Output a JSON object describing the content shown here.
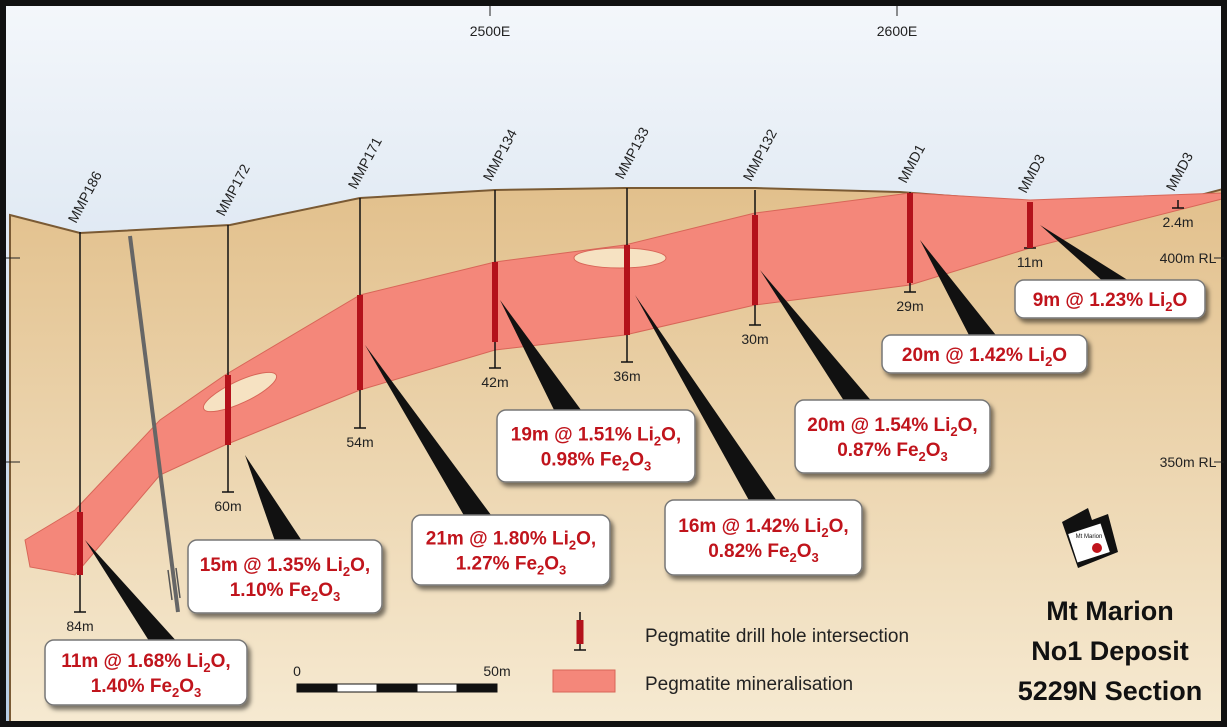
{
  "axis": {
    "eastings": [
      "2500E",
      "2600E"
    ],
    "levels": [
      "400m RL",
      "350m RL"
    ]
  },
  "holes": [
    {
      "name": "MMP186",
      "depth": "84m"
    },
    {
      "name": "MMP172",
      "depth": "60m"
    },
    {
      "name": "MMP171",
      "depth": "54m"
    },
    {
      "name": "MMP134",
      "depth": "42m"
    },
    {
      "name": "MMP133",
      "depth": "36m"
    },
    {
      "name": "MMP132",
      "depth": "30m"
    },
    {
      "name": "MMD1",
      "depth": "29m"
    },
    {
      "name": "MMD3",
      "depth": "11m"
    },
    {
      "name": "MMD3",
      "depth": "2.4m"
    }
  ],
  "intercepts": [
    {
      "lines": [
        [
          "11m @ 1.68% Li",
          "2",
          "O,"
        ],
        [
          "1.40% Fe",
          "2",
          "O",
          "3"
        ]
      ]
    },
    {
      "lines": [
        [
          "15m @ 1.35% Li",
          "2",
          "O,"
        ],
        [
          "1.10% Fe",
          "2",
          "O",
          "3"
        ]
      ]
    },
    {
      "lines": [
        [
          "21m @ 1.80% Li",
          "2",
          "O,"
        ],
        [
          "1.27% Fe",
          "2",
          "O",
          "3"
        ]
      ]
    },
    {
      "lines": [
        [
          "19m @ 1.51% Li",
          "2",
          "O,"
        ],
        [
          "0.98% Fe",
          "2",
          "O",
          "3"
        ]
      ]
    },
    {
      "lines": [
        [
          "16m @ 1.42% Li",
          "2",
          "O,"
        ],
        [
          "0.82% Fe",
          "2",
          "O",
          "3"
        ]
      ]
    },
    {
      "lines": [
        [
          "20m @ 1.54% Li",
          "2",
          "O,"
        ],
        [
          "0.87% Fe",
          "2",
          "O",
          "3"
        ]
      ]
    },
    {
      "lines": [
        [
          "20m @ 1.42% Li",
          "2",
          "O"
        ]
      ]
    },
    {
      "lines": [
        [
          "9m @ 1.23% Li",
          "2",
          "O"
        ]
      ]
    }
  ],
  "legend": [
    "Pegmatite drill hole intersection",
    "Pegmatite mineralisation"
  ],
  "scale": {
    "start": "0",
    "end": "50m"
  },
  "title": [
    "Mt Marion",
    "No1 Deposit",
    "5229N  Section"
  ],
  "logo": "Mt Marion"
}
